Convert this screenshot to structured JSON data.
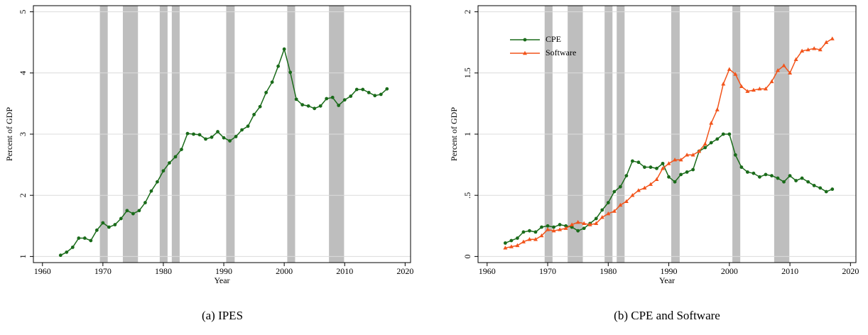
{
  "chart_data": [
    {
      "type": "line",
      "caption": "(a) IPES",
      "xlabel": "Year",
      "ylabel": "Percent of GDP",
      "xlim": [
        1958.5,
        2020.9
      ],
      "xticks": [
        1960,
        1970,
        1980,
        1990,
        2000,
        2010,
        2020
      ],
      "ylim": [
        0.9,
        5.1
      ],
      "yticks": [
        1,
        2,
        3,
        4,
        5
      ],
      "grid": true,
      "recessions": [
        [
          1969.5,
          1970.8
        ],
        [
          1973.3,
          1975.8
        ],
        [
          1979.4,
          1980.7
        ],
        [
          1981.4,
          1982.7
        ],
        [
          1990.4,
          1991.8
        ],
        [
          2000.5,
          2001.8
        ],
        [
          2007.4,
          2009.9
        ]
      ],
      "x": [
        1963,
        1964,
        1965,
        1966,
        1967,
        1968,
        1969,
        1970,
        1971,
        1972,
        1973,
        1974,
        1975,
        1976,
        1977,
        1978,
        1979,
        1980,
        1981,
        1982,
        1983,
        1984,
        1985,
        1986,
        1987,
        1988,
        1989,
        1990,
        1991,
        1992,
        1993,
        1994,
        1995,
        1996,
        1997,
        1998,
        1999,
        2000,
        2001,
        2002,
        2003,
        2004,
        2005,
        2006,
        2007,
        2008,
        2009,
        2010,
        2011,
        2012,
        2013,
        2014,
        2015,
        2016,
        2017
      ],
      "series": [
        {
          "color": "#1a6b1a",
          "marker": "circle",
          "values": [
            1.02,
            1.07,
            1.15,
            1.3,
            1.3,
            1.26,
            1.43,
            1.55,
            1.48,
            1.52,
            1.62,
            1.75,
            1.7,
            1.75,
            1.88,
            2.07,
            2.22,
            2.4,
            2.53,
            2.63,
            2.75,
            3.01,
            3.0,
            2.99,
            2.92,
            2.95,
            3.04,
            2.94,
            2.89,
            2.96,
            3.07,
            3.13,
            3.32,
            3.45,
            3.68,
            3.85,
            4.11,
            4.39,
            4.01,
            3.57,
            3.48,
            3.46,
            3.42,
            3.46,
            3.58,
            3.6,
            3.47,
            3.56,
            3.62,
            3.73,
            3.73,
            3.68,
            3.63,
            3.65,
            3.74
          ]
        }
      ]
    },
    {
      "type": "line",
      "caption": "(b) CPE and Software",
      "xlabel": "Year",
      "ylabel": "Percent of GDP",
      "xlim": [
        1958.5,
        2020.9
      ],
      "xticks": [
        1960,
        1970,
        1980,
        1990,
        2000,
        2010,
        2020
      ],
      "ylim": [
        -0.05,
        2.05
      ],
      "yticks": [
        0,
        {
          "value": 0.5,
          "label": ".5"
        },
        1,
        1.5,
        2
      ],
      "grid": true,
      "legend": "top-left",
      "recessions": [
        [
          1969.5,
          1970.8
        ],
        [
          1973.3,
          1975.8
        ],
        [
          1979.4,
          1980.7
        ],
        [
          1981.4,
          1982.7
        ],
        [
          1990.4,
          1991.8
        ],
        [
          2000.5,
          2001.8
        ],
        [
          2007.4,
          2009.9
        ]
      ],
      "x": [
        1963,
        1964,
        1965,
        1966,
        1967,
        1968,
        1969,
        1970,
        1971,
        1972,
        1973,
        1974,
        1975,
        1976,
        1977,
        1978,
        1979,
        1980,
        1981,
        1982,
        1983,
        1984,
        1985,
        1986,
        1987,
        1988,
        1989,
        1990,
        1991,
        1992,
        1993,
        1994,
        1995,
        1996,
        1997,
        1998,
        1999,
        2000,
        2001,
        2002,
        2003,
        2004,
        2005,
        2006,
        2007,
        2008,
        2009,
        2010,
        2011,
        2012,
        2013,
        2014,
        2015,
        2016,
        2017
      ],
      "series": [
        {
          "name": "CPE",
          "color": "#1a6b1a",
          "marker": "circle",
          "values": [
            0.11,
            0.13,
            0.15,
            0.2,
            0.21,
            0.2,
            0.24,
            0.25,
            0.24,
            0.26,
            0.25,
            0.24,
            0.21,
            0.23,
            0.27,
            0.31,
            0.38,
            0.44,
            0.53,
            0.57,
            0.66,
            0.78,
            0.77,
            0.73,
            0.73,
            0.72,
            0.76,
            0.65,
            0.61,
            0.67,
            0.69,
            0.71,
            0.86,
            0.89,
            0.93,
            0.96,
            1.0,
            1.0,
            0.83,
            0.73,
            0.69,
            0.68,
            0.65,
            0.67,
            0.66,
            0.64,
            0.61,
            0.66,
            0.62,
            0.64,
            0.61,
            0.58,
            0.56,
            0.53,
            0.55
          ]
        },
        {
          "name": "Software",
          "color": "#f2541b",
          "marker": "triangle",
          "values": [
            0.07,
            0.08,
            0.09,
            0.12,
            0.14,
            0.14,
            0.17,
            0.22,
            0.21,
            0.22,
            0.23,
            0.26,
            0.28,
            0.27,
            0.26,
            0.27,
            0.32,
            0.35,
            0.37,
            0.42,
            0.45,
            0.5,
            0.54,
            0.56,
            0.59,
            0.63,
            0.72,
            0.76,
            0.79,
            0.79,
            0.83,
            0.83,
            0.86,
            0.92,
            1.09,
            1.2,
            1.41,
            1.53,
            1.49,
            1.39,
            1.35,
            1.36,
            1.37,
            1.37,
            1.43,
            1.52,
            1.56,
            1.5,
            1.61,
            1.68,
            1.69,
            1.7,
            1.69,
            1.75,
            1.78
          ]
        }
      ]
    }
  ]
}
